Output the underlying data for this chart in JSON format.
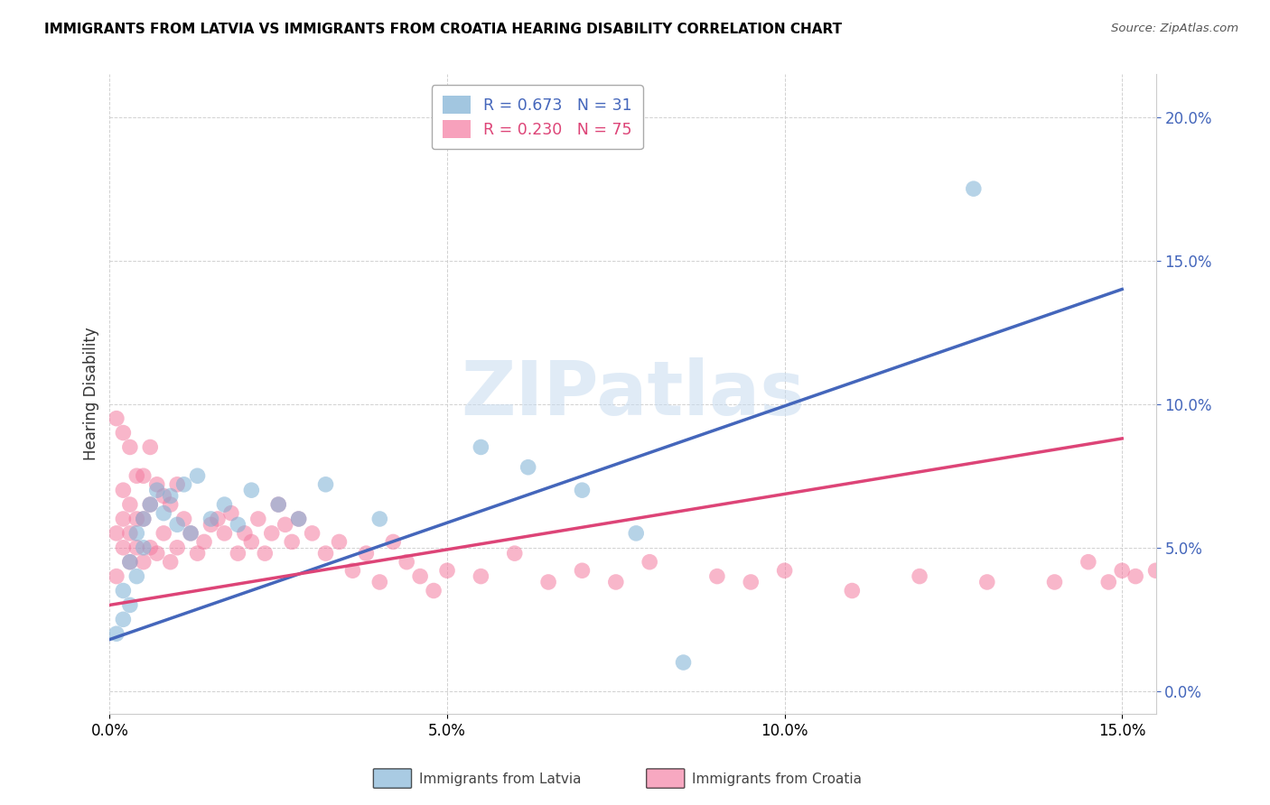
{
  "title": "IMMIGRANTS FROM LATVIA VS IMMIGRANTS FROM CROATIA HEARING DISABILITY CORRELATION CHART",
  "source": "Source: ZipAtlas.com",
  "ylabel": "Hearing Disability",
  "xmin": 0.0,
  "xmax": 0.155,
  "ymin": -0.008,
  "ymax": 0.215,
  "legend_latvia_R": "0.673",
  "legend_latvia_N": "31",
  "legend_croatia_R": "0.230",
  "legend_croatia_N": "75",
  "color_latvia": "#7BAFD4",
  "color_croatia": "#F47AA0",
  "line_color_latvia": "#4466BB",
  "line_color_croatia": "#DD4477",
  "watermark_text": "ZIPatlas",
  "latvia_x": [
    0.001,
    0.002,
    0.002,
    0.003,
    0.003,
    0.004,
    0.004,
    0.005,
    0.005,
    0.006,
    0.007,
    0.008,
    0.009,
    0.01,
    0.011,
    0.012,
    0.013,
    0.015,
    0.017,
    0.019,
    0.021,
    0.025,
    0.028,
    0.032,
    0.04,
    0.055,
    0.062,
    0.07,
    0.078,
    0.085,
    0.128
  ],
  "latvia_y": [
    0.02,
    0.025,
    0.035,
    0.03,
    0.045,
    0.04,
    0.055,
    0.05,
    0.06,
    0.065,
    0.07,
    0.062,
    0.068,
    0.058,
    0.072,
    0.055,
    0.075,
    0.06,
    0.065,
    0.058,
    0.07,
    0.065,
    0.06,
    0.072,
    0.06,
    0.085,
    0.078,
    0.07,
    0.055,
    0.01,
    0.175
  ],
  "croatia_x": [
    0.001,
    0.001,
    0.001,
    0.002,
    0.002,
    0.002,
    0.002,
    0.003,
    0.003,
    0.003,
    0.003,
    0.004,
    0.004,
    0.004,
    0.005,
    0.005,
    0.005,
    0.006,
    0.006,
    0.006,
    0.007,
    0.007,
    0.008,
    0.008,
    0.009,
    0.009,
    0.01,
    0.01,
    0.011,
    0.012,
    0.013,
    0.014,
    0.015,
    0.016,
    0.017,
    0.018,
    0.019,
    0.02,
    0.021,
    0.022,
    0.023,
    0.024,
    0.025,
    0.026,
    0.027,
    0.028,
    0.03,
    0.032,
    0.034,
    0.036,
    0.038,
    0.04,
    0.042,
    0.044,
    0.046,
    0.048,
    0.05,
    0.055,
    0.06,
    0.065,
    0.07,
    0.075,
    0.08,
    0.09,
    0.095,
    0.1,
    0.11,
    0.12,
    0.13,
    0.14,
    0.145,
    0.148,
    0.15,
    0.152,
    0.155
  ],
  "croatia_y": [
    0.04,
    0.055,
    0.095,
    0.05,
    0.06,
    0.07,
    0.09,
    0.045,
    0.055,
    0.065,
    0.085,
    0.05,
    0.06,
    0.075,
    0.045,
    0.06,
    0.075,
    0.05,
    0.065,
    0.085,
    0.048,
    0.072,
    0.055,
    0.068,
    0.045,
    0.065,
    0.05,
    0.072,
    0.06,
    0.055,
    0.048,
    0.052,
    0.058,
    0.06,
    0.055,
    0.062,
    0.048,
    0.055,
    0.052,
    0.06,
    0.048,
    0.055,
    0.065,
    0.058,
    0.052,
    0.06,
    0.055,
    0.048,
    0.052,
    0.042,
    0.048,
    0.038,
    0.052,
    0.045,
    0.04,
    0.035,
    0.042,
    0.04,
    0.048,
    0.038,
    0.042,
    0.038,
    0.045,
    0.04,
    0.038,
    0.042,
    0.035,
    0.04,
    0.038,
    0.038,
    0.045,
    0.038,
    0.042,
    0.04,
    0.042
  ],
  "latvia_line_x": [
    0.0,
    0.15
  ],
  "latvia_line_y": [
    0.018,
    0.14
  ],
  "croatia_line_x": [
    0.0,
    0.15
  ],
  "croatia_line_y": [
    0.03,
    0.088
  ]
}
